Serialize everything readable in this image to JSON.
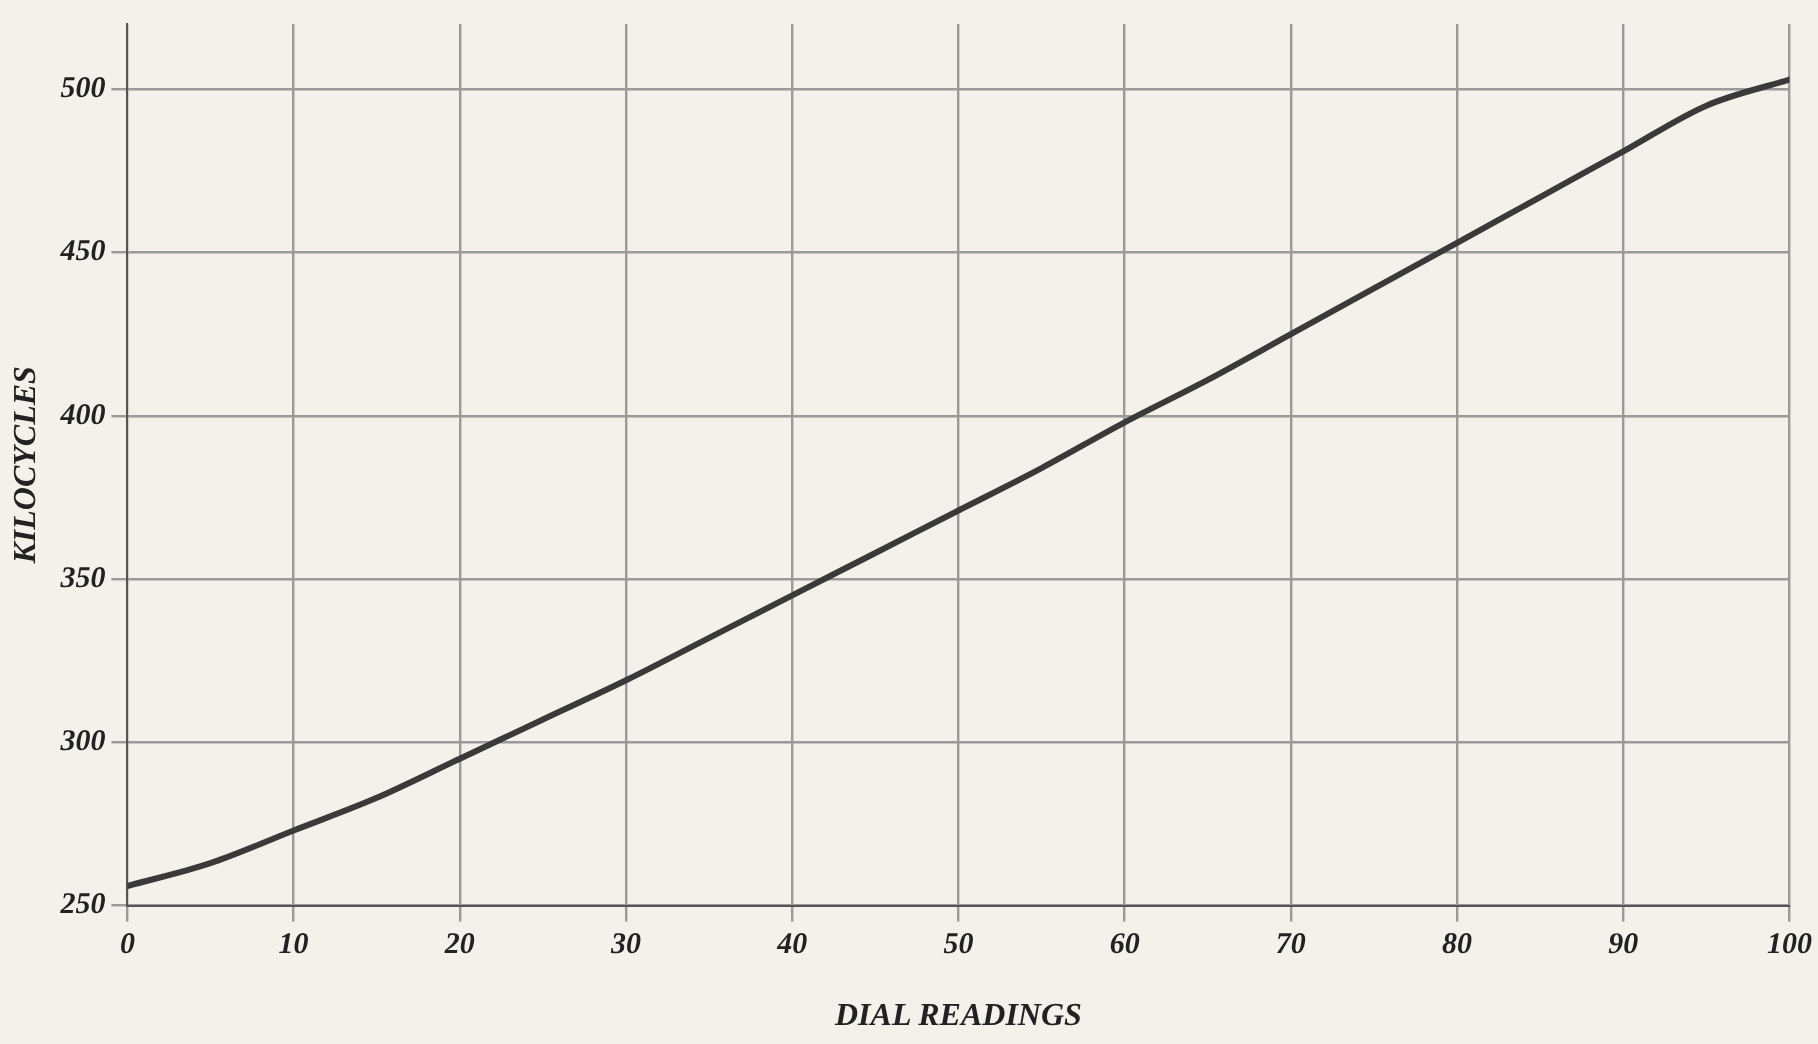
{
  "chart_data": {
    "type": "line",
    "xlabel": "DIAL READINGS",
    "ylabel": "KILOCYCLES",
    "x": [
      0,
      5,
      10,
      15,
      20,
      25,
      30,
      35,
      40,
      45,
      50,
      55,
      60,
      65,
      70,
      75,
      80,
      85,
      90,
      95,
      100
    ],
    "series": [
      {
        "color": "#3a3a3a",
        "values": [
          256,
          263,
          273,
          283,
          295,
          307,
          319,
          332,
          345,
          358,
          371,
          384,
          398,
          411,
          425,
          439,
          453,
          467,
          481,
          495,
          503
        ]
      }
    ],
    "xlim": [
      0,
      100
    ],
    "xticks": [
      0,
      10,
      20,
      30,
      40,
      50,
      60,
      70,
      80,
      90,
      100
    ],
    "ylim": [
      250,
      520
    ],
    "yticks": [
      250,
      300,
      350,
      400,
      450,
      500
    ],
    "grid": true,
    "legend": false,
    "marker": "none",
    "line_style": "solid"
  }
}
